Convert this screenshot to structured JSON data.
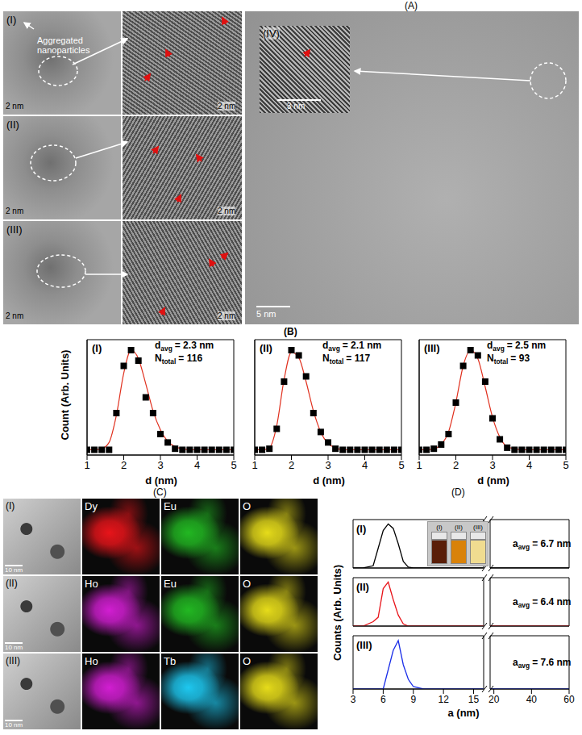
{
  "figure": {
    "panel_A": {
      "label": "(A)",
      "rows": [
        {
          "label": "(I)",
          "annotation": "Aggregated nanoparticles",
          "scale_bars": [
            "2 nm",
            "2 nm"
          ]
        },
        {
          "label": "(II)",
          "scale_bars": [
            "2 nm",
            "2 nm"
          ]
        },
        {
          "label": "(III)",
          "scale_bars": [
            "2 nm",
            "2 nm"
          ]
        }
      ],
      "main": {
        "label": "(IV)",
        "inset_scale_bar": "3 nm",
        "scale_bar": "5 nm"
      }
    },
    "panel_B": {
      "label": "(B)",
      "y_label": "Count (Arb. Units)"
    },
    "panel_C": {
      "label": "(C)",
      "rows": [
        {
          "label": "(I)",
          "scale_bar": "10 nm",
          "maps": [
            {
              "element": "Dy",
              "color": "#e8141a"
            },
            {
              "element": "Eu",
              "color": "#22b822"
            },
            {
              "element": "O",
              "color": "#e6dc1a"
            }
          ]
        },
        {
          "label": "(II)",
          "scale_bar": "10 nm",
          "maps": [
            {
              "element": "Ho",
              "color": "#d21ed2"
            },
            {
              "element": "Eu",
              "color": "#22b822"
            },
            {
              "element": "O",
              "color": "#e6dc1a"
            }
          ]
        },
        {
          "label": "(III)",
          "scale_bar": "10 nm",
          "maps": [
            {
              "element": "Ho",
              "color": "#d21ed2"
            },
            {
              "element": "Tb",
              "color": "#1ec8f0"
            },
            {
              "element": "O",
              "color": "#e6dc1a"
            }
          ]
        }
      ]
    },
    "panel_D": {
      "label": "(D)",
      "y_label": "Counts (Arb. Units)",
      "inset": {
        "labels": [
          "(I)",
          "(II)",
          "(III)"
        ],
        "colors": [
          "#5a1e08",
          "#d9820a",
          "#f0dc90"
        ]
      }
    }
  },
  "chart_data": [
    {
      "type": "scatter",
      "title": "(I)",
      "x_label": "d (nm)",
      "annotations": [
        {
          "text": "d",
          "subscript": "avg",
          "suffix": "= 2.3 nm"
        },
        {
          "text": "N",
          "subscript": "total",
          "suffix": "= 116"
        }
      ],
      "x": [
        1.0,
        1.2,
        1.4,
        1.6,
        1.8,
        2.0,
        2.2,
        2.4,
        2.6,
        2.8,
        3.0,
        3.2,
        3.4,
        3.6,
        3.8,
        4.0,
        4.2,
        4.4,
        4.6,
        4.8,
        5.0
      ],
      "series": [
        {
          "type": "scatter",
          "marker": "square",
          "color": "#000000",
          "values": [
            0.05,
            0.05,
            0.05,
            0.05,
            0.4,
            0.85,
            1.0,
            0.9,
            0.55,
            0.4,
            0.2,
            0.12,
            0.06,
            0.05,
            0.05,
            0.05,
            0.05,
            0.05,
            0.05,
            0.05,
            0.05
          ]
        },
        {
          "type": "line",
          "color": "#e0301e",
          "values": [
            0.05,
            0.05,
            0.06,
            0.12,
            0.38,
            0.78,
            1.0,
            0.92,
            0.68,
            0.42,
            0.24,
            0.13,
            0.08,
            0.06,
            0.05,
            0.05,
            0.05,
            0.05,
            0.05,
            0.05,
            0.05
          ]
        }
      ],
      "xlim": [
        1,
        5
      ],
      "xticks": [
        1,
        2,
        3,
        4,
        5
      ],
      "ylim": [
        0,
        1.1
      ],
      "yticks": [],
      "tick_labels": "x"
    },
    {
      "type": "scatter",
      "title": "(II)",
      "x_label": "d (nm)",
      "annotations": [
        {
          "text": "d",
          "subscript": "avg",
          "suffix": "= 2.1 nm"
        },
        {
          "text": "N",
          "subscript": "total",
          "suffix": "= 117"
        }
      ],
      "x": [
        1.0,
        1.2,
        1.4,
        1.6,
        1.8,
        2.0,
        2.2,
        2.4,
        2.6,
        2.8,
        3.0,
        3.2,
        3.4,
        3.6,
        3.8,
        4.0,
        4.2,
        4.4,
        4.6,
        4.8,
        5.0
      ],
      "series": [
        {
          "type": "scatter",
          "marker": "square",
          "color": "#000000",
          "values": [
            0.05,
            0.05,
            0.06,
            0.25,
            0.7,
            1.0,
            0.95,
            0.75,
            0.4,
            0.22,
            0.12,
            0.06,
            0.05,
            0.05,
            0.05,
            0.05,
            0.05,
            0.05,
            0.05,
            0.05,
            0.05
          ]
        },
        {
          "type": "line",
          "color": "#e0301e",
          "values": [
            0.05,
            0.05,
            0.07,
            0.28,
            0.72,
            0.98,
            0.93,
            0.7,
            0.42,
            0.22,
            0.11,
            0.07,
            0.05,
            0.05,
            0.05,
            0.05,
            0.05,
            0.05,
            0.05,
            0.05,
            0.05
          ]
        }
      ],
      "xlim": [
        1,
        5
      ],
      "xticks": [
        1,
        2,
        3,
        4,
        5
      ],
      "ylim": [
        0,
        1.1
      ],
      "yticks": [],
      "tick_labels": "x"
    },
    {
      "type": "scatter",
      "title": "(III)",
      "x_label": "d (nm)",
      "annotations": [
        {
          "text": "d",
          "subscript": "avg",
          "suffix": "= 2.5 nm"
        },
        {
          "text": "N",
          "subscript": "total",
          "suffix": "= 93"
        }
      ],
      "x": [
        1.0,
        1.2,
        1.4,
        1.6,
        1.8,
        2.0,
        2.2,
        2.4,
        2.6,
        2.8,
        3.0,
        3.2,
        3.4,
        3.6,
        3.8,
        4.0,
        4.2,
        4.4,
        4.6,
        4.8,
        5.0
      ],
      "series": [
        {
          "type": "scatter",
          "marker": "square",
          "color": "#000000",
          "values": [
            0.05,
            0.05,
            0.06,
            0.1,
            0.2,
            0.5,
            0.85,
            1.0,
            0.95,
            0.7,
            0.35,
            0.15,
            0.07,
            0.05,
            0.05,
            0.05,
            0.05,
            0.05,
            0.05,
            0.05,
            0.05
          ]
        },
        {
          "type": "line",
          "color": "#e0301e",
          "values": [
            0.05,
            0.05,
            0.06,
            0.1,
            0.22,
            0.5,
            0.85,
            1.0,
            0.92,
            0.65,
            0.36,
            0.17,
            0.08,
            0.06,
            0.05,
            0.05,
            0.05,
            0.05,
            0.05,
            0.05,
            0.05
          ]
        }
      ],
      "xlim": [
        1,
        5
      ],
      "xticks": [
        1,
        2,
        3,
        4,
        5
      ],
      "ylim": [
        0,
        1.1
      ],
      "yticks": [],
      "tick_labels": "x"
    },
    {
      "type": "line",
      "title": "(I)",
      "annotations": [
        {
          "text": "a",
          "subscript": "avg",
          "suffix": "= 6.7 nm"
        }
      ],
      "x": [
        3,
        4,
        5,
        5.5,
        6,
        6.5,
        7,
        7.5,
        8,
        8.5,
        9,
        10,
        12,
        14,
        16,
        18,
        30,
        45,
        60
      ],
      "series": [
        {
          "color": "#000000",
          "values": [
            0,
            0,
            0.05,
            0.45,
            0.85,
            1.0,
            0.9,
            0.55,
            0.15,
            0.02,
            0,
            0,
            0,
            0,
            0,
            0,
            0,
            0,
            0
          ]
        }
      ],
      "xlim": [
        3,
        60
      ],
      "xticks": [
        3,
        6,
        9,
        12,
        15,
        20,
        40,
        60
      ],
      "x_break": [
        16,
        18
      ],
      "ylim": [
        0,
        1.1
      ],
      "yticks": [],
      "tick_labels": false
    },
    {
      "type": "line",
      "title": "(II)",
      "annotations": [
        {
          "text": "a",
          "subscript": "avg",
          "suffix": "= 6.4 nm"
        }
      ],
      "x": [
        3,
        4,
        5,
        5.5,
        6,
        6.5,
        7,
        7.5,
        8,
        8.5,
        9,
        10,
        12,
        14,
        16,
        18,
        30,
        45,
        60
      ],
      "series": [
        {
          "color": "#e8141a",
          "values": [
            0,
            0,
            0.1,
            0.2,
            0.85,
            1.0,
            0.6,
            0.25,
            0.05,
            0,
            0,
            0,
            0,
            0,
            0,
            0,
            0,
            0,
            0
          ]
        }
      ],
      "xlim": [
        3,
        60
      ],
      "xticks": [
        3,
        6,
        9,
        12,
        15,
        20,
        40,
        60
      ],
      "x_break": [
        16,
        18
      ],
      "ylim": [
        0,
        1.1
      ],
      "yticks": [],
      "tick_labels": false
    },
    {
      "type": "line",
      "title": "(III)",
      "x_label": "a (nm)",
      "annotations": [
        {
          "text": "a",
          "subscript": "avg",
          "suffix": "= 7.6 nm"
        }
      ],
      "x": [
        3,
        4,
        5,
        5.5,
        6,
        6.5,
        7,
        7.5,
        8,
        8.5,
        9,
        10,
        12,
        14,
        16,
        18,
        30,
        45,
        60
      ],
      "series": [
        {
          "color": "#1a2ee8",
          "values": [
            0,
            0,
            0,
            0,
            0,
            0.4,
            0.8,
            1.0,
            0.5,
            0.2,
            0.05,
            0,
            0,
            0,
            0,
            0,
            0,
            0,
            0
          ]
        }
      ],
      "xlim": [
        3,
        60
      ],
      "xticks": [
        3,
        6,
        9,
        12,
        15,
        20,
        40,
        60
      ],
      "x_break": [
        16,
        18
      ],
      "ylim": [
        0,
        1.1
      ],
      "yticks": [],
      "tick_labels": "x"
    }
  ]
}
